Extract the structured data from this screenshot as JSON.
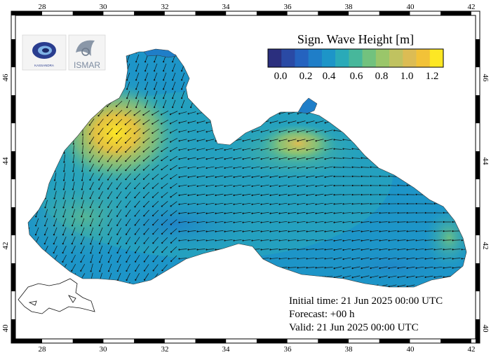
{
  "map": {
    "legend": {
      "title": "Sign. Wave Height [m]",
      "colors": [
        "#2b2f7e",
        "#2a4aa5",
        "#2563bf",
        "#1f7ec8",
        "#1d95c8",
        "#2aaab8",
        "#47b79b",
        "#72c27e",
        "#9ac66a",
        "#c0c260",
        "#dcbc54",
        "#f2c238",
        "#fde724"
      ],
      "tick_labels": [
        "0.0",
        "0.2",
        "0.4",
        "0.6",
        "0.8",
        "1.0",
        "1.2"
      ]
    },
    "lon_ticks": [
      "28",
      "30",
      "32",
      "34",
      "36",
      "38",
      "40",
      "42"
    ],
    "lat_ticks": [
      "40",
      "42",
      "44",
      "46"
    ],
    "info": {
      "initial": "Initial time: 21 Jun 2025 00:00 UTC",
      "forecast": "Forecast: +00 h",
      "valid": "Valid: 21 Jun 2025 00:00 UTC"
    },
    "logos": [
      {
        "name": "kassandra-logo",
        "text": "KASSANDRA"
      },
      {
        "name": "ismar-logo",
        "text": "ISMAR"
      }
    ]
  }
}
